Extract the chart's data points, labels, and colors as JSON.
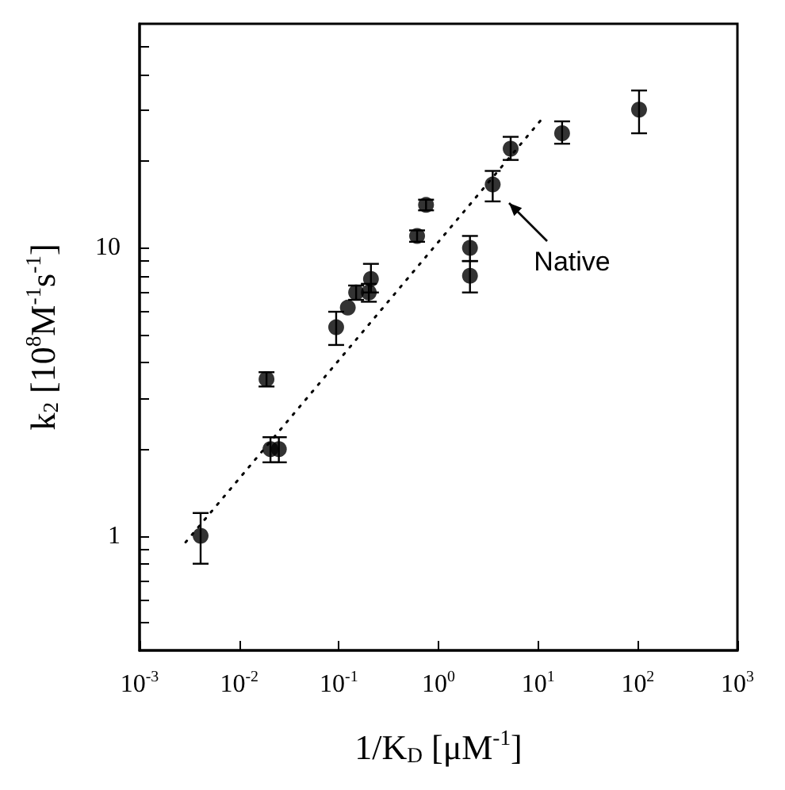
{
  "chart_data": {
    "type": "scatter",
    "xlabel": "1/K$_{D}$ [μM$^{-1}$]",
    "ylabel": "k$_{2}$ [10$^{8}$M$^{-1}$s$^{-1}$]",
    "log": "xy",
    "grid": false,
    "marker": "circle",
    "xlim": [
      0.001,
      1000
    ],
    "ylim": [
      0.4,
      60
    ],
    "xticks": [
      {
        "value": 0.001,
        "label": "10$^{-3}$"
      },
      {
        "value": 0.01,
        "label": "10$^{-2}$"
      },
      {
        "value": 0.1,
        "label": "10$^{-1}$"
      },
      {
        "value": 1,
        "label": "10$^{0}$"
      },
      {
        "value": 10,
        "label": "10$^{1}$"
      },
      {
        "value": 100,
        "label": "10$^{2}$"
      },
      {
        "value": 1000,
        "label": "10$^{3}$"
      }
    ],
    "yticks": [
      {
        "value": 0.5,
        "label": null
      },
      {
        "value": 0.6,
        "label": null
      },
      {
        "value": 0.7,
        "label": null
      },
      {
        "value": 0.8,
        "label": null
      },
      {
        "value": 0.9,
        "label": null
      },
      1,
      {
        "value": 2,
        "label": null
      },
      {
        "value": 3,
        "label": null
      },
      {
        "value": 4,
        "label": null
      },
      {
        "value": 5,
        "label": null
      },
      {
        "value": 6,
        "label": null
      },
      {
        "value": 7,
        "label": null
      },
      {
        "value": 8,
        "label": null
      },
      {
        "value": 9,
        "label": null
      },
      10,
      {
        "value": 20,
        "label": null
      },
      {
        "value": 30,
        "label": null
      },
      {
        "value": 40,
        "label": null
      },
      {
        "value": 50,
        "label": null
      }
    ],
    "annotations": [
      {
        "text": "Native",
        "x": 3.5,
        "y": 16.6
      }
    ],
    "series": [
      {
        "color": "#000000",
        "x": [
          0.0041,
          0.0188,
          0.0206,
          0.025,
          0.094,
          0.123,
          0.149,
          0.2,
          0.21,
          0.61,
          0.75,
          2.07,
          2.07,
          3.5,
          5.3,
          17.4,
          103
        ],
        "values": [
          1.0,
          3.5,
          2.0,
          2.0,
          5.3,
          6.2,
          7.0,
          7.0,
          7.8,
          11.0,
          14.1,
          10.0,
          8.0,
          16.6,
          22.1,
          25,
          30.2
        ],
        "errors": [
          [
            0.8,
            1.2
          ],
          [
            3.3,
            3.7
          ],
          [
            1.8,
            2.2
          ],
          [
            1.8,
            2.2
          ],
          [
            4.6,
            6.0
          ],
          null,
          [
            6.6,
            7.4
          ],
          [
            6.5,
            7.5
          ],
          [
            7.0,
            8.8
          ],
          [
            10.5,
            11.5
          ],
          [
            13.5,
            14.7
          ],
          [
            9.0,
            11.0
          ],
          [
            7.0,
            9.0
          ],
          [
            14.5,
            18.5
          ],
          [
            20.2,
            24.3
          ],
          [
            23,
            27.5
          ],
          [
            25,
            35.2
          ]
        ]
      },
      {
        "type": "line",
        "color": "#000000",
        "line_style": "dotted",
        "marker": "none",
        "x": [
          0.0029,
          10.5
        ],
        "values": [
          0.95,
          27.6
        ]
      }
    ]
  }
}
